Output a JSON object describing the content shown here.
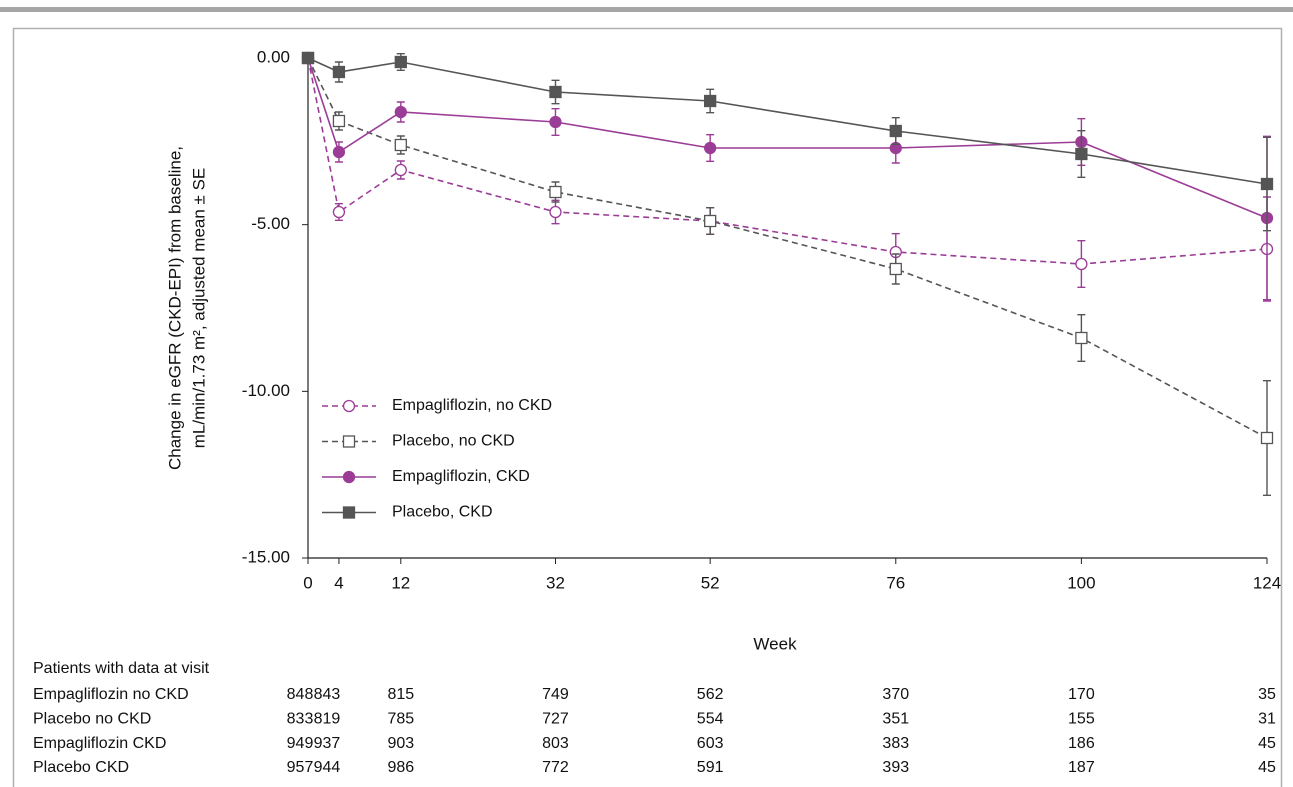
{
  "chart_data": {
    "type": "line",
    "y_label": [
      "Change in eGFR (CKD-EPI) from baseline,",
      "mL/min/1.73 m², adjusted mean ± SE"
    ],
    "x_label": "Week",
    "x": [
      0,
      4,
      12,
      32,
      52,
      76,
      100,
      124
    ],
    "xlim": [
      0,
      124
    ],
    "xticks": [
      0,
      4,
      12,
      32,
      52,
      76,
      100,
      124
    ],
    "ylim": [
      -15,
      0
    ],
    "yticks": [
      {
        "value": 0,
        "label": "0.00"
      },
      {
        "value": -5,
        "label": "-5.00"
      },
      {
        "value": -10,
        "label": "-10.00"
      },
      {
        "value": -15,
        "label": "-15.00"
      }
    ],
    "grid": false,
    "legend": "lower left",
    "series": [
      {
        "name": "Empagliflozin, no CKD",
        "color": "#9b3c96",
        "marker": "circle",
        "filled": false,
        "dashed": true,
        "values": [
          0,
          -4.62,
          -3.36,
          -4.62,
          -4.89,
          -5.82,
          -6.18,
          -5.73
        ],
        "errors": [
          null,
          0.25,
          0.27,
          0.35,
          0.4,
          0.55,
          0.7,
          1.56
        ]
      },
      {
        "name": "Placebo, no CKD",
        "color": "#555555",
        "marker": "square",
        "filled": false,
        "dashed": true,
        "values": [
          0,
          -1.89,
          -2.61,
          -4.02,
          -4.89,
          -6.33,
          -8.4,
          -11.4
        ],
        "errors": [
          null,
          0.27,
          0.27,
          0.3,
          0.4,
          0.45,
          0.7,
          1.72
        ]
      },
      {
        "name": "Empagliflozin, CKD",
        "color": "#9b3c96",
        "marker": "circle",
        "filled": true,
        "dashed": false,
        "values": [
          0,
          -2.82,
          -1.62,
          -1.92,
          -2.7,
          -2.7,
          -2.52,
          -4.8
        ],
        "errors": [
          null,
          0.3,
          0.3,
          0.4,
          0.4,
          0.45,
          0.7,
          2.45
        ]
      },
      {
        "name": "Placebo, CKD",
        "color": "#555555",
        "marker": "square",
        "filled": true,
        "dashed": false,
        "values": [
          0,
          -0.42,
          -0.12,
          -1.02,
          -1.29,
          -2.19,
          -2.88,
          -3.78
        ],
        "errors": [
          null,
          0.3,
          0.25,
          0.35,
          0.35,
          0.4,
          0.7,
          1.4
        ]
      }
    ]
  },
  "table": {
    "title": "Patients with data at visit",
    "rows": [
      {
        "label": "Empagliflozin no CKD",
        "counts": [
          848,
          843,
          815,
          749,
          562,
          370,
          170,
          35
        ]
      },
      {
        "label": "Placebo no CKD",
        "counts": [
          833,
          819,
          785,
          727,
          554,
          351,
          155,
          31
        ]
      },
      {
        "label": "Empagliflozin CKD",
        "counts": [
          949,
          937,
          903,
          803,
          603,
          383,
          186,
          45
        ]
      },
      {
        "label": "Placebo CKD",
        "counts": [
          957,
          944,
          986,
          772,
          591,
          393,
          187,
          45
        ]
      }
    ]
  }
}
